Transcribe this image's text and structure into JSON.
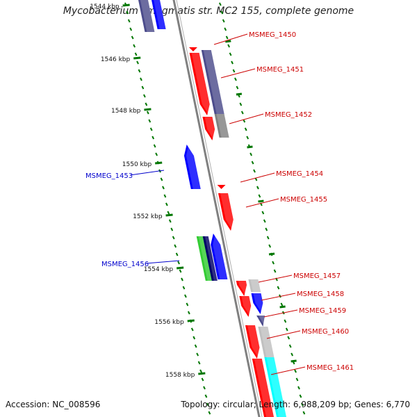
{
  "title": "Mycobacterium smegmatis str. MC2 155, complete genome",
  "footer": {
    "accession": "Accession: NC_008596",
    "summary": "Topology: circular; Length: 6,988,209 bp; Genes: 6,770"
  },
  "colors": {
    "backbone": "#808080",
    "red": "#ff0000",
    "blue": "#0000ff",
    "slate": "#4c4c8c",
    "gray": "#808080",
    "light_gray": "#c0c0c0",
    "green": "#33cc33",
    "navy": "#000066",
    "cyan": "#00ffff",
    "tick": "#007700",
    "label_red": "#cc0000",
    "label_blue": "#0000cc"
  },
  "ticks": [
    {
      "label": "1544 kbp"
    },
    {
      "label": "1546 kbp"
    },
    {
      "label": "1548 kbp"
    },
    {
      "label": "1550 kbp"
    },
    {
      "label": "1552 kbp"
    },
    {
      "label": "1554 kbp"
    },
    {
      "label": "1556 kbp"
    },
    {
      "label": "1558 kbp"
    }
  ],
  "genes": [
    {
      "name": "MSMEG_1450",
      "strand": "+"
    },
    {
      "name": "MSMEG_1451",
      "strand": "+"
    },
    {
      "name": "MSMEG_1452",
      "strand": "+"
    },
    {
      "name": "MSMEG_1453",
      "strand": "-"
    },
    {
      "name": "MSMEG_1454",
      "strand": "+"
    },
    {
      "name": "MSMEG_1455",
      "strand": "+"
    },
    {
      "name": "MSMEG_1456",
      "strand": "-"
    },
    {
      "name": "MSMEG_1457",
      "strand": "+"
    },
    {
      "name": "MSMEG_1458",
      "strand": "+"
    },
    {
      "name": "MSMEG_1459",
      "strand": "+"
    },
    {
      "name": "MSMEG_1460",
      "strand": "+"
    },
    {
      "name": "MSMEG_1461",
      "strand": "+"
    }
  ]
}
